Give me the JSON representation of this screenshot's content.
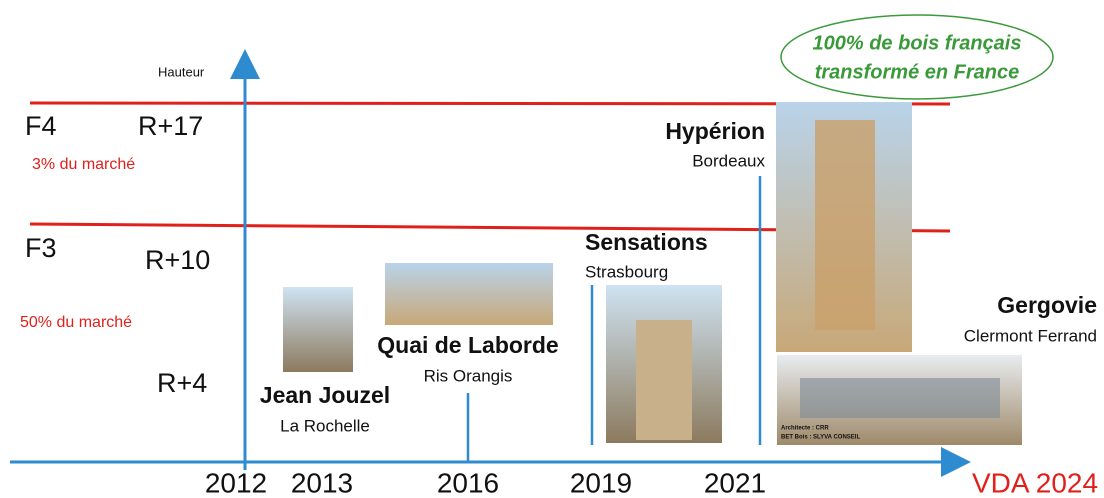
{
  "axis_label": "Hauteur",
  "levels": [
    {
      "class": "F4",
      "height": "R+17",
      "share": "3% du marché"
    },
    {
      "class": "F3",
      "height": "R+10",
      "share": "50% du marché"
    }
  ],
  "low_height": "R+4",
  "years": [
    "2012",
    "2013",
    "2016",
    "2019",
    "2021"
  ],
  "footer": "VDA 2024",
  "badge": [
    "100% de bois français",
    "transformé en France"
  ],
  "projects": [
    {
      "name": "Jean Jouzel",
      "city": "La Rochelle"
    },
    {
      "name": "Quai de Laborde",
      "city": "Ris Orangis"
    },
    {
      "name": "Sensations",
      "city": "Strasbourg"
    },
    {
      "name": "Hypérion",
      "city": "Bordeaux"
    },
    {
      "name": "Gergovie",
      "city": "Clermont Ferrand"
    }
  ],
  "photo_credits": [
    "Architecte : CRR",
    "BET Bois : SLYVA CONSEIL"
  ]
}
